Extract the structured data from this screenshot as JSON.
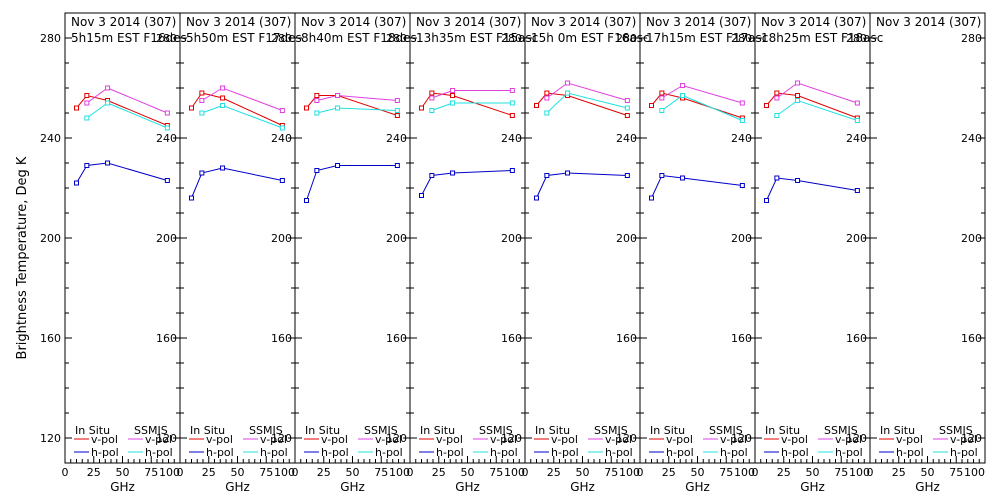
{
  "y_axis_label": "Brightness Temperature, Deg K",
  "x_axis_label": "GHz",
  "legend": {
    "left_title": "In Situ",
    "right_title": "SSMIS",
    "v_pol": "v-pol",
    "h_pol": "h-pol"
  },
  "colors": {
    "insitu_v": "#e00000",
    "insitu_h": "#0000c8",
    "ssmis_v": "#e040e0",
    "ssmis_h": "#20e0e0"
  },
  "chart_data": {
    "type": "line",
    "ylim": [
      110,
      290
    ],
    "xlim": [
      0,
      100
    ],
    "y_ticks": [
      120,
      160,
      200,
      240,
      280
    ],
    "x_ticks": [
      0,
      25,
      50,
      75
    ],
    "panels": [
      {
        "title": "Nov 3 2014 (307)",
        "subtitle": "5h15m  EST  F16des",
        "series": [
          {
            "name": "In Situ v-pol",
            "x": [
              10,
              19,
              37,
              89
            ],
            "y": [
              252,
              257,
              255,
              245
            ]
          },
          {
            "name": "In Situ h-pol",
            "x": [
              10,
              19,
              37,
              89
            ],
            "y": [
              222,
              229,
              230,
              223
            ]
          },
          {
            "name": "SSMIS v-pol",
            "x": [
              19,
              37,
              89
            ],
            "y": [
              254,
              260,
              250
            ]
          },
          {
            "name": "SSMIS h-pol",
            "x": [
              19,
              37,
              89
            ],
            "y": [
              248,
              254,
              244
            ]
          }
        ]
      },
      {
        "title": "Nov 3 2014 (307)",
        "subtitle": "5h50m  EST  F17des",
        "series": [
          {
            "name": "In Situ v-pol",
            "x": [
              10,
              19,
              37,
              89
            ],
            "y": [
              252,
              258,
              256,
              245
            ]
          },
          {
            "name": "In Situ h-pol",
            "x": [
              10,
              19,
              37,
              89
            ],
            "y": [
              216,
              226,
              228,
              223
            ]
          },
          {
            "name": "SSMIS v-pol",
            "x": [
              19,
              37,
              89
            ],
            "y": [
              255,
              260,
              251
            ]
          },
          {
            "name": "SSMIS h-pol",
            "x": [
              19,
              37,
              89
            ],
            "y": [
              250,
              253,
              244
            ]
          }
        ]
      },
      {
        "title": "Nov 3 2014 (307)",
        "subtitle": "8h40m  EST  F18des",
        "series": [
          {
            "name": "In Situ v-pol",
            "x": [
              10,
              19,
              37,
              89
            ],
            "y": [
              252,
              257,
              257,
              249
            ]
          },
          {
            "name": "In Situ h-pol",
            "x": [
              10,
              19,
              37,
              89
            ],
            "y": [
              215,
              227,
              229,
              229
            ]
          },
          {
            "name": "SSMIS v-pol",
            "x": [
              19,
              37,
              89
            ],
            "y": [
              255,
              257,
              255
            ]
          },
          {
            "name": "SSMIS h-pol",
            "x": [
              19,
              37,
              89
            ],
            "y": [
              250,
              252,
              251
            ]
          }
        ]
      },
      {
        "title": "Nov 3 2014 (307)",
        "subtitle": "13h35m  EST  F15asc",
        "series": [
          {
            "name": "In Situ v-pol",
            "x": [
              10,
              19,
              37,
              89
            ],
            "y": [
              252,
              258,
              257,
              249
            ]
          },
          {
            "name": "In Situ h-pol",
            "x": [
              10,
              19,
              37,
              89
            ],
            "y": [
              217,
              225,
              226,
              227
            ]
          },
          {
            "name": "SSMIS v-pol",
            "x": [
              19,
              37,
              89
            ],
            "y": [
              256,
              259,
              259
            ]
          },
          {
            "name": "SSMIS h-pol",
            "x": [
              19,
              37,
              89
            ],
            "y": [
              251,
              254,
              254
            ]
          }
        ]
      },
      {
        "title": "Nov 3 2014 (307)",
        "subtitle": "15h  0m  EST  F16asc",
        "series": [
          {
            "name": "In Situ v-pol",
            "x": [
              10,
              19,
              37,
              89
            ],
            "y": [
              253,
              258,
              257,
              249
            ]
          },
          {
            "name": "In Situ h-pol",
            "x": [
              10,
              19,
              37,
              89
            ],
            "y": [
              216,
              225,
              226,
              225
            ]
          },
          {
            "name": "SSMIS v-pol",
            "x": [
              19,
              37,
              89
            ],
            "y": [
              256,
              262,
              255
            ]
          },
          {
            "name": "SSMIS h-pol",
            "x": [
              19,
              37,
              89
            ],
            "y": [
              250,
              258,
              252
            ]
          }
        ]
      },
      {
        "title": "Nov 3 2014 (307)",
        "subtitle": "17h15m  EST  F17asc",
        "series": [
          {
            "name": "In Situ v-pol",
            "x": [
              10,
              19,
              37,
              89
            ],
            "y": [
              253,
              258,
              256,
              248
            ]
          },
          {
            "name": "In Situ h-pol",
            "x": [
              10,
              19,
              37,
              89
            ],
            "y": [
              216,
              225,
              224,
              221
            ]
          },
          {
            "name": "SSMIS v-pol",
            "x": [
              19,
              37,
              89
            ],
            "y": [
              256,
              261,
              254
            ]
          },
          {
            "name": "SSMIS h-pol",
            "x": [
              19,
              37,
              89
            ],
            "y": [
              251,
              257,
              247
            ]
          }
        ]
      },
      {
        "title": "Nov 3 2014 (307)",
        "subtitle": "18h25m  EST  F18asc",
        "series": [
          {
            "name": "In Situ v-pol",
            "x": [
              10,
              19,
              37,
              89
            ],
            "y": [
              253,
              258,
              257,
              248
            ]
          },
          {
            "name": "In Situ h-pol",
            "x": [
              10,
              19,
              37,
              89
            ],
            "y": [
              215,
              224,
              223,
              219
            ]
          },
          {
            "name": "SSMIS v-pol",
            "x": [
              19,
              37,
              89
            ],
            "y": [
              256,
              262,
              254
            ]
          },
          {
            "name": "SSMIS h-pol",
            "x": [
              19,
              37,
              89
            ],
            "y": [
              249,
              255,
              247
            ]
          }
        ]
      },
      {
        "title": "Nov 3 2014 (307)",
        "subtitle": "",
        "series": []
      }
    ]
  }
}
